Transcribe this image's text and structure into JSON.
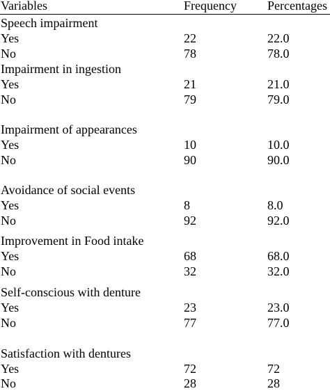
{
  "header": {
    "variables": "Variables",
    "frequency": "Frequency",
    "percentages": "Percentages"
  },
  "groups": [
    {
      "title": "Speech impairment",
      "rows": [
        {
          "label": "Yes",
          "frequency": "22",
          "percentage": "22.0"
        },
        {
          "label": "No",
          "frequency": "78",
          "percentage": "78.0"
        }
      ]
    },
    {
      "title": "Impairment in ingestion",
      "rows": [
        {
          "label": "Yes",
          "frequency": "21",
          "percentage": "21.0"
        },
        {
          "label": "No",
          "frequency": "79",
          "percentage": "79.0"
        }
      ]
    },
    {
      "title": "Impairment of appearances",
      "rows": [
        {
          "label": "Yes",
          "frequency": "10",
          "percentage": "10.0"
        },
        {
          "label": "No",
          "frequency": "90",
          "percentage": "90.0"
        }
      ]
    },
    {
      "title": "Avoidance of social events",
      "rows": [
        {
          "label": "Yes",
          "frequency": "8",
          "percentage": "8.0"
        },
        {
          "label": "No",
          "frequency": "92",
          "percentage": "92.0"
        }
      ]
    },
    {
      "title": "Improvement in Food intake",
      "rows": [
        {
          "label": "Yes",
          "frequency": "68",
          "percentage": "68.0"
        },
        {
          "label": "No",
          "frequency": "32",
          "percentage": "32.0"
        }
      ]
    },
    {
      "title": "Self-conscious with denture",
      "rows": [
        {
          "label": "Yes",
          "frequency": "23",
          "percentage": "23.0"
        },
        {
          "label": "No",
          "frequency": "77",
          "percentage": "77.0"
        }
      ]
    },
    {
      "title": "Satisfaction with dentures",
      "rows": [
        {
          "label": "Yes",
          "frequency": "72",
          "percentage": "72"
        },
        {
          "label": "No",
          "frequency": "28",
          "percentage": "28"
        }
      ]
    }
  ]
}
